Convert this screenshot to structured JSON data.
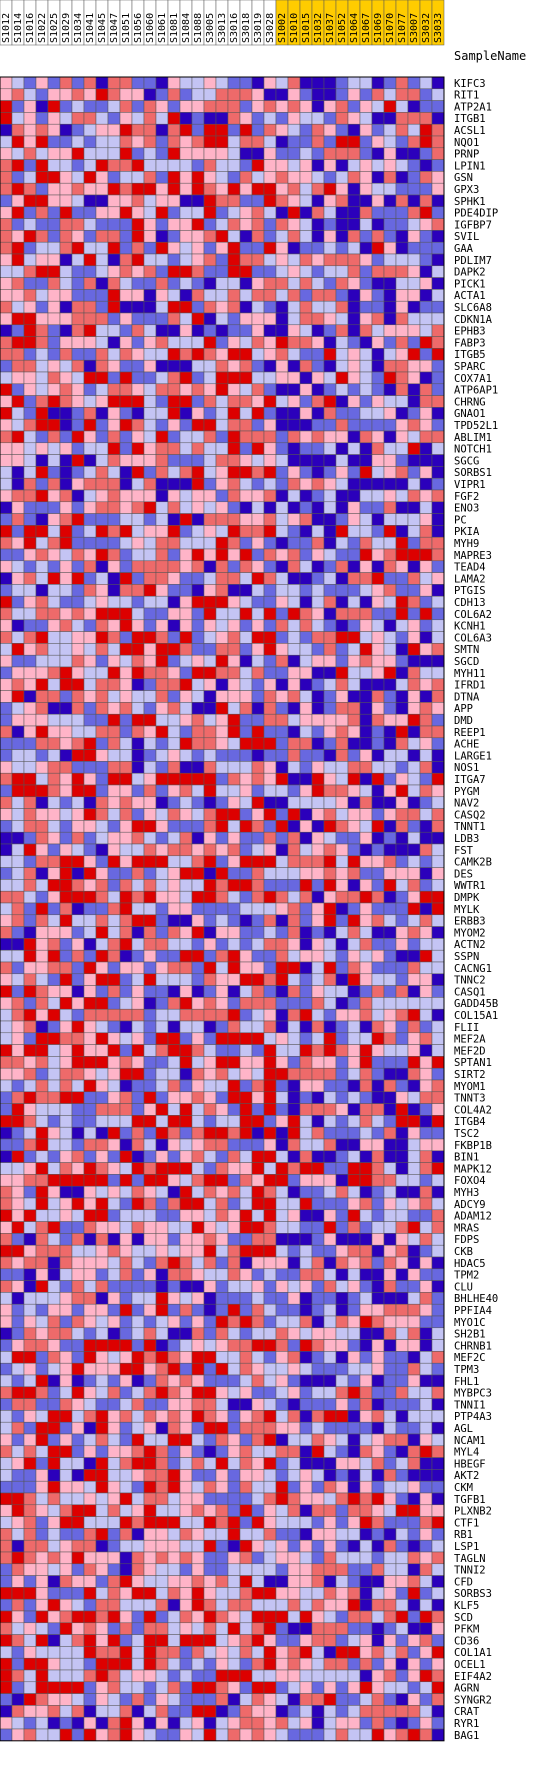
{
  "chart_data": {
    "type": "heatmap",
    "title": "",
    "sample_header": "SampleName",
    "samples": [
      {
        "name": "S1012",
        "group": "class-0"
      },
      {
        "name": "S1014",
        "group": "class-0"
      },
      {
        "name": "S1016",
        "group": "class-0"
      },
      {
        "name": "S1022",
        "group": "class-0"
      },
      {
        "name": "S1025",
        "group": "class-0"
      },
      {
        "name": "S1029",
        "group": "class-0"
      },
      {
        "name": "S1034",
        "group": "class-0"
      },
      {
        "name": "S1041",
        "group": "class-0"
      },
      {
        "name": "S1045",
        "group": "class-0"
      },
      {
        "name": "S1047",
        "group": "class-0"
      },
      {
        "name": "S1051",
        "group": "class-0"
      },
      {
        "name": "S1056",
        "group": "class-0"
      },
      {
        "name": "S1060",
        "group": "class-0"
      },
      {
        "name": "S1061",
        "group": "class-0"
      },
      {
        "name": "S1081",
        "group": "class-0"
      },
      {
        "name": "S1084",
        "group": "class-0"
      },
      {
        "name": "S1088",
        "group": "class-0"
      },
      {
        "name": "S3005",
        "group": "class-0"
      },
      {
        "name": "S3013",
        "group": "class-0"
      },
      {
        "name": "S3016",
        "group": "class-0"
      },
      {
        "name": "S3018",
        "group": "class-0"
      },
      {
        "name": "S3019",
        "group": "class-0"
      },
      {
        "name": "S3028",
        "group": "class-0"
      },
      {
        "name": "S1002",
        "group": "class-1"
      },
      {
        "name": "S1010",
        "group": "class-1"
      },
      {
        "name": "S1015",
        "group": "class-1"
      },
      {
        "name": "S1032",
        "group": "class-1"
      },
      {
        "name": "S1037",
        "group": "class-1"
      },
      {
        "name": "S1052",
        "group": "class-1"
      },
      {
        "name": "S1064",
        "group": "class-1"
      },
      {
        "name": "S1067",
        "group": "class-1"
      },
      {
        "name": "S1069",
        "group": "class-1"
      },
      {
        "name": "S1070",
        "group": "class-1"
      },
      {
        "name": "S1077",
        "group": "class-1"
      },
      {
        "name": "S3007",
        "group": "class-1"
      },
      {
        "name": "S3032",
        "group": "class-1"
      },
      {
        "name": "S3033",
        "group": "class-1"
      }
    ],
    "genes": [
      "KIFC3",
      "RIT1",
      "ATP2A1",
      "ITGB1",
      "ACSL1",
      "NQO1",
      "PRNP",
      "LPIN1",
      "GSN",
      "GPX3",
      "SPHK1",
      "PDE4DIP",
      "IGFBP7",
      "SVIL",
      "GAA",
      "PDLIM7",
      "DAPK2",
      "PICK1",
      "ACTA1",
      "SLC6A8",
      "CDKN1A",
      "EPHB3",
      "FABP3",
      "ITGB5",
      "SPARC",
      "COX7A1",
      "ATP6AP1",
      "CHRNG",
      "GNAO1",
      "TPD52L1",
      "ABLIM1",
      "NOTCH1",
      "SGCG",
      "SORBS1",
      "VIPR1",
      "FGF2",
      "ENO3",
      "PC",
      "PKIA",
      "MYH9",
      "MAPRE3",
      "TEAD4",
      "LAMA2",
      "PTGIS",
      "CDH13",
      "COL6A2",
      "KCNH1",
      "COL6A3",
      "SMTN",
      "SGCD",
      "MYH11",
      "IFRD1",
      "DTNA",
      "APP",
      "DMD",
      "REEP1",
      "ACHE",
      "LARGE1",
      "NOS1",
      "ITGA7",
      "PYGM",
      "NAV2",
      "CASQ2",
      "TNNT1",
      "LDB3",
      "FST",
      "CAMK2B",
      "DES",
      "WWTR1",
      "DMPK",
      "MYLK",
      "ERBB3",
      "MYOM2",
      "ACTN2",
      "SSPN",
      "CACNG1",
      "TNNC2",
      "CASQ1",
      "GADD45B",
      "COL15A1",
      "FLII",
      "MEF2A",
      "MEF2D",
      "SPTAN1",
      "SIRT2",
      "MYOM1",
      "TNNT3",
      "COL4A2",
      "ITGB4",
      "TSC2",
      "FKBP1B",
      "BIN1",
      "MAPK12",
      "FOXO4",
      "MYH3",
      "ADCY9",
      "ADAM12",
      "MRAS",
      "FDPS",
      "CKB",
      "HDAC5",
      "TPM2",
      "CLU",
      "BHLHE40",
      "PPFIA4",
      "MYO1C",
      "SH2B1",
      "CHRNB1",
      "MEF2C",
      "TPM3",
      "FHL1",
      "MYBPC3",
      "TNNI1",
      "PTP4A3",
      "AGL",
      "NCAM1",
      "MYL4",
      "HBEGF",
      "AKT2",
      "CKM",
      "TGFB1",
      "PLXNB2",
      "CTF1",
      "RB1",
      "LSP1",
      "TAGLN",
      "TNNI2",
      "CFD",
      "SORBS3",
      "KLF5",
      "SCD",
      "PFKM",
      "CD36",
      "COL1A1",
      "OCEL1",
      "EIF4A2",
      "AGRN",
      "SYNGR2",
      "CRAT",
      "RYR1",
      "BAG1"
    ],
    "colors": {
      "strong_high": "#dd0000",
      "high": "#ee6a6a",
      "mid_high": "#ffb4c8",
      "mid_low": "#c4c4f4",
      "low": "#6868e0",
      "strong_low": "#2b00bb",
      "class_0": "#ffffff",
      "class_1": "#ffcc00",
      "grid": "#555555"
    },
    "note_values": "cell values are standardized expression levels on a -3..3 scale (row-normalized)"
  }
}
